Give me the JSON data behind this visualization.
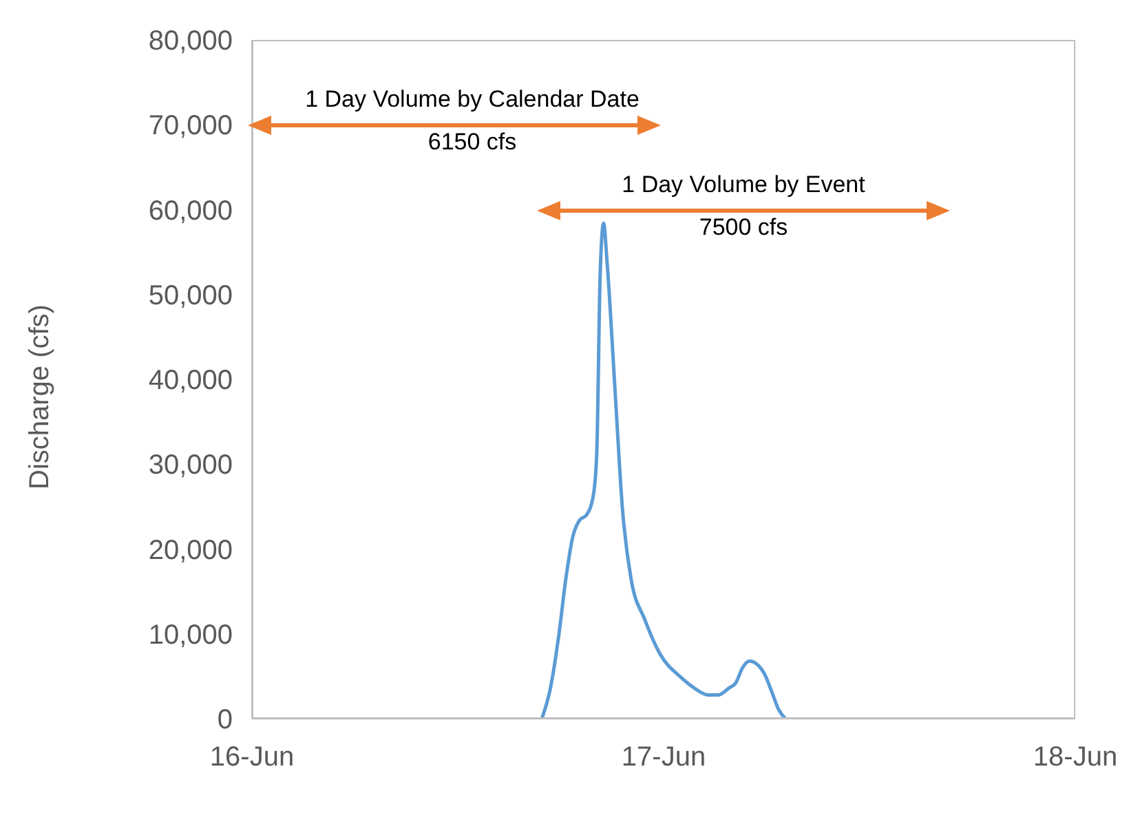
{
  "chart_data": {
    "type": "line",
    "ylabel": "Discharge (cfs)",
    "x": [
      "--06-16T16:54",
      "--06-16T17:24",
      "--06-16T17:54",
      "--06-16T18:18",
      "--06-16T18:42",
      "--06-16T19:06",
      "--06-16T19:30",
      "--06-16T19:54",
      "--06-16T20:06",
      "--06-16T20:18",
      "--06-16T20:30",
      "--06-16T20:42",
      "--06-16T21:12",
      "--06-16T21:36",
      "--06-16T22:06",
      "--06-16T22:54",
      "--06-16T23:48",
      "--06-17T01:00",
      "--06-17T01:48",
      "--06-17T02:36",
      "--06-17T03:12",
      "--06-17T03:48",
      "--06-17T04:12",
      "--06-17T04:36",
      "--06-17T05:00",
      "--06-17T05:24",
      "--06-17T05:54",
      "--06-17T06:18",
      "--06-17T06:42",
      "--06-17T07:06"
    ],
    "series": [
      {
        "color": "#5b9bd5",
        "values": [
          0,
          3600,
          10000,
          16500,
          21400,
          23400,
          24000,
          26300,
          31200,
          52300,
          58400,
          53900,
          37600,
          24700,
          16500,
          11700,
          7600,
          4900,
          3600,
          2800,
          2800,
          3600,
          4200,
          6000,
          6800,
          6500,
          5200,
          3200,
          1100,
          0
        ]
      }
    ],
    "xlim": [
      "--06-16",
      "--06-18"
    ],
    "xticks": [
      {
        "value": "--06-16",
        "label": "16-Jun"
      },
      {
        "value": "--06-17",
        "label": "17-Jun"
      },
      {
        "value": "--06-18",
        "label": "18-Jun"
      }
    ],
    "ylim": [
      0,
      80000
    ],
    "yticks": [
      {
        "value": 0,
        "label": "0"
      },
      {
        "value": 10000,
        "label": "10,000"
      },
      {
        "value": 20000,
        "label": "20,000"
      },
      {
        "value": 30000,
        "label": "30,000"
      },
      {
        "value": 40000,
        "label": "40,000"
      },
      {
        "value": 50000,
        "label": "50,000"
      },
      {
        "value": 60000,
        "label": "60,000"
      },
      {
        "value": 70000,
        "label": "70,000"
      },
      {
        "value": 80000,
        "label": "80,000"
      }
    ],
    "grid": false,
    "legend": false,
    "marker": "none",
    "line_style": "solid",
    "annotations": [
      "1 Day Volume by Calendar Date",
      "6150 cfs",
      "1 Day Volume by Event",
      "7500 cfs"
    ]
  }
}
